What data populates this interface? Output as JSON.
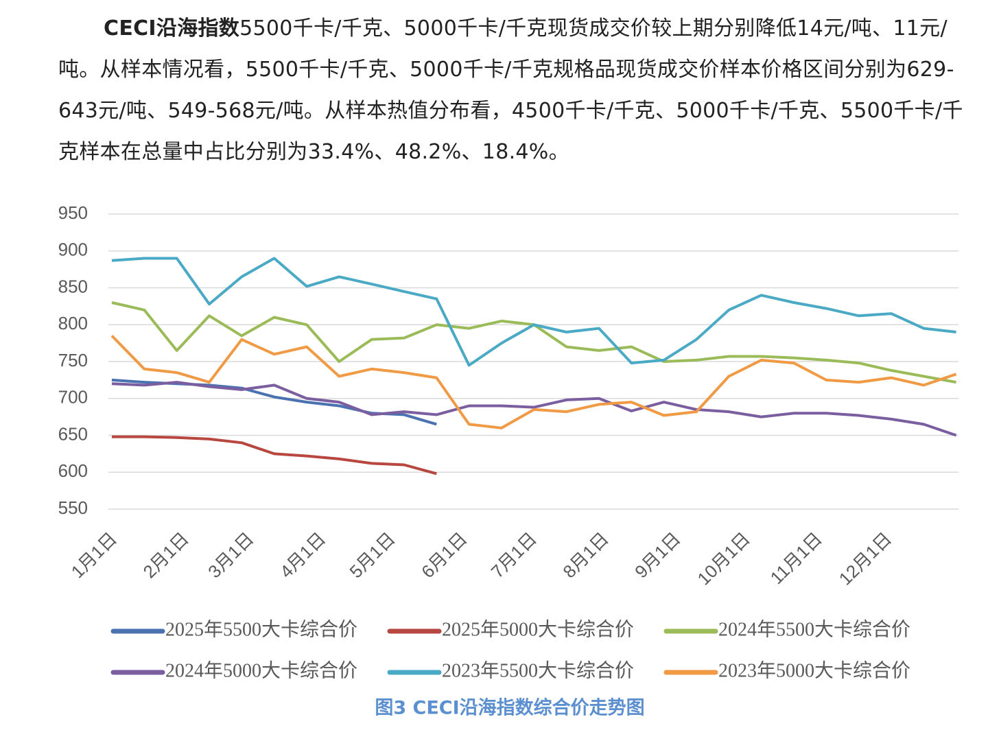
{
  "paragraph": {
    "bold": "CECI沿海指数",
    "text": "5500千卡/千克、5000千卡/千克现货成交价较上期分别降低14元/吨、11元/吨。从样本情况看，5500千卡/千克、5000千卡/千克规格品现货成交价样本价格区间分别为629-643元/吨、549-568元/吨。从样本热值分布看，4500千卡/千克、5000千卡/千克、5500千卡/千克样本在总量中占比分别为33.4%、48.2%、18.4%。"
  },
  "chart_data": {
    "type": "line",
    "caption": "图3  CECI沿海指数综合价走势图",
    "x": [
      0,
      14,
      28,
      42,
      56,
      70,
      84,
      98,
      112,
      126,
      140,
      154,
      168,
      182,
      196,
      210,
      224,
      238,
      252,
      266,
      280,
      294,
      308,
      322,
      336,
      350,
      364
    ],
    "xlim": [
      0,
      365
    ],
    "xticks": [
      {
        "value": 0,
        "label": "1月1日"
      },
      {
        "value": 31,
        "label": "2月1日"
      },
      {
        "value": 59,
        "label": "3月1日"
      },
      {
        "value": 90,
        "label": "4月1日"
      },
      {
        "value": 120,
        "label": "5月1日"
      },
      {
        "value": 151,
        "label": "6月1日"
      },
      {
        "value": 181,
        "label": "7月1日"
      },
      {
        "value": 212,
        "label": "8月1日"
      },
      {
        "value": 243,
        "label": "9月1日"
      },
      {
        "value": 273,
        "label": "10月1日"
      },
      {
        "value": 304,
        "label": "11月1日"
      },
      {
        "value": 334,
        "label": "12月1日"
      }
    ],
    "ylim": [
      550,
      950
    ],
    "yticks": [
      550,
      600,
      650,
      700,
      750,
      800,
      850,
      900,
      950
    ],
    "grid": true,
    "series": [
      {
        "name": "2025年5500大卡综合价",
        "color": "#4a72b0",
        "values": [
          725,
          722,
          720,
          718,
          714,
          702,
          695,
          690,
          680,
          678,
          665,
          null,
          null,
          null,
          null,
          null,
          null,
          null,
          null,
          null,
          null,
          null,
          null,
          null,
          null,
          null,
          null
        ]
      },
      {
        "name": "2025年5000大卡综合价",
        "color": "#b7473f",
        "values": [
          648,
          648,
          647,
          645,
          640,
          625,
          622,
          618,
          612,
          610,
          598,
          null,
          null,
          null,
          null,
          null,
          null,
          null,
          null,
          null,
          null,
          null,
          null,
          null,
          null,
          null,
          null
        ]
      },
      {
        "name": "2024年5500大卡综合价",
        "color": "#9bbb59",
        "values": [
          830,
          820,
          765,
          812,
          785,
          810,
          800,
          750,
          780,
          782,
          800,
          795,
          805,
          800,
          770,
          765,
          770,
          750,
          752,
          757,
          757,
          755,
          752,
          748,
          738,
          730,
          722
        ]
      },
      {
        "name": "2024年5000大卡综合价",
        "color": "#7a5ea0",
        "values": [
          720,
          718,
          722,
          716,
          712,
          718,
          700,
          695,
          678,
          682,
          678,
          690,
          690,
          688,
          698,
          700,
          683,
          695,
          685,
          682,
          675,
          680,
          680,
          677,
          672,
          665,
          650
        ]
      },
      {
        "name": "2023年5500大卡综合价",
        "color": "#4aa9c4",
        "values": [
          887,
          890,
          890,
          828,
          865,
          890,
          852,
          865,
          855,
          845,
          835,
          745,
          775,
          800,
          790,
          795,
          748,
          752,
          780,
          820,
          840,
          830,
          822,
          812,
          815,
          795,
          790
        ]
      },
      {
        "name": "2023年5000大卡综合价",
        "color": "#f09a45",
        "values": [
          785,
          740,
          735,
          722,
          780,
          760,
          770,
          730,
          740,
          735,
          728,
          665,
          660,
          685,
          682,
          692,
          695,
          677,
          682,
          730,
          752,
          748,
          725,
          722,
          728,
          718,
          733
        ]
      }
    ]
  }
}
